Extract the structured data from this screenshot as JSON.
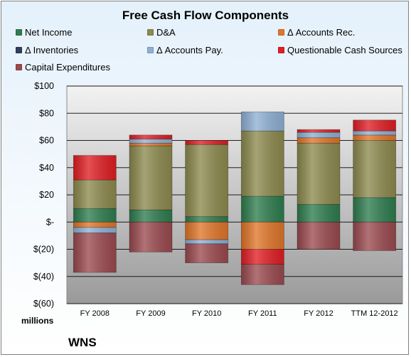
{
  "chart_data": {
    "type": "bar",
    "stacked": true,
    "title": "Free Cash Flow Components",
    "units_label": "millions",
    "company": "WNS",
    "categories": [
      "FY 2008",
      "FY 2009",
      "FY 2010",
      "FY 2011",
      "FY 2012",
      "TTM 12-2012"
    ],
    "ylim": [
      -60,
      100
    ],
    "yticks": [
      100,
      80,
      60,
      40,
      20,
      0,
      -20,
      -40,
      -60
    ],
    "ytick_labels": [
      "$100",
      "$80",
      "$60",
      "$40",
      "$20",
      "$-",
      "$(20)",
      "$(40)",
      "$(60)"
    ],
    "grid": true,
    "legend_position": "top",
    "series": [
      {
        "name": "Net Income",
        "color": "#2e7d4f",
        "values": [
          10,
          9,
          4,
          19,
          13,
          18
        ]
      },
      {
        "name": "D&A",
        "color": "#8d8a4e",
        "values": [
          21,
          47,
          53,
          48,
          45,
          42
        ]
      },
      {
        "name": "Δ Accounts Rec.",
        "color": "#e0762a",
        "values": [
          -4,
          2,
          -13,
          -20,
          4,
          4
        ]
      },
      {
        "name": "Δ Inventories",
        "color": "#2f3f5c",
        "values": [
          0,
          0,
          0,
          0,
          0,
          0
        ]
      },
      {
        "name": "Δ Accounts Pay.",
        "color": "#8fb0d4",
        "values": [
          -4,
          3,
          -3,
          14,
          4,
          3
        ]
      },
      {
        "name": "Questionable Cash Sources",
        "color": "#e01e24",
        "values": [
          18,
          3,
          3,
          -11,
          2,
          8
        ]
      },
      {
        "name": "Capital Expenditures",
        "color": "#9b4a4f",
        "values": [
          -29,
          -22,
          -14,
          -15,
          -20,
          -21
        ]
      }
    ]
  }
}
